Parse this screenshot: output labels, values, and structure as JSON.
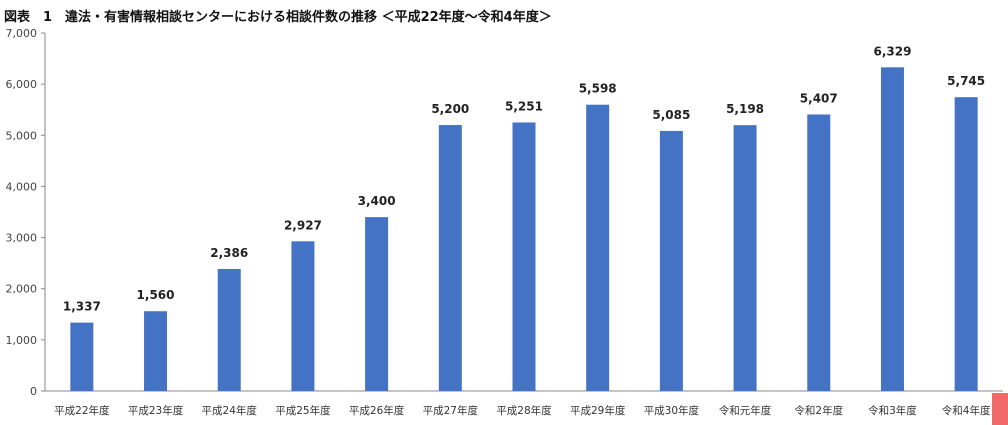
{
  "title": "図表　1　違法・有害情報相談センターにおける相談件数の推移 ＜平成22年度～令和4年度＞",
  "chart_data": {
    "type": "bar",
    "title": "図表　1　違法・有害情報相談センターにおける相談件数の推移 ＜平成22年度～令和4年度＞",
    "categories": [
      "平成22年度",
      "平成23年度",
      "平成24年度",
      "平成25年度",
      "平成26年度",
      "平成27年度",
      "平成28年度",
      "平成29年度",
      "平成30年度",
      "令和元年度",
      "令和2年度",
      "令和3年度",
      "令和4年度"
    ],
    "values": [
      1337,
      1560,
      2386,
      2927,
      3400,
      5200,
      5251,
      5598,
      5085,
      5198,
      5407,
      6329,
      5745
    ],
    "value_labels": [
      "1,337",
      "1,560",
      "2,386",
      "2,927",
      "3,400",
      "5,200",
      "5,251",
      "5,598",
      "5,085",
      "5,198",
      "5,407",
      "6,329",
      "5,745"
    ],
    "yticks": [
      "0",
      "1,000",
      "2,000",
      "3,000",
      "4,000",
      "5,000",
      "6,000",
      "7,000"
    ],
    "ylim": [
      0,
      7000
    ],
    "bar_color": "#4472c4",
    "grid": false,
    "legend": "none"
  }
}
